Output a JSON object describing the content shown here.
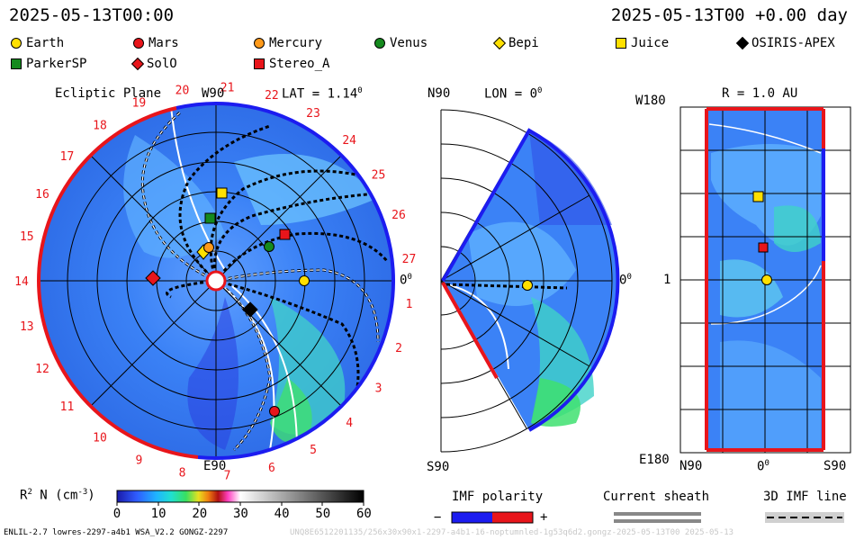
{
  "header": {
    "left_time": "2025-05-13T00:00",
    "right_time": "2025-05-13T00 +0.00 day"
  },
  "legend": [
    {
      "name": "Earth",
      "shape": "circle",
      "color": "#ffe000"
    },
    {
      "name": "Mars",
      "shape": "circle",
      "color": "#e8151b"
    },
    {
      "name": "Mercury",
      "shape": "circle",
      "color": "#ff9a1a"
    },
    {
      "name": "Venus",
      "shape": "circle",
      "color": "#158a1e"
    },
    {
      "name": "Bepi",
      "shape": "diamond",
      "color": "#ffe000"
    },
    {
      "name": "Juice",
      "shape": "square",
      "color": "#ffe000"
    },
    {
      "name": "OSIRIS-APEX",
      "shape": "diamond",
      "color": "#000000"
    },
    {
      "name": "ParkerSP",
      "shape": "square",
      "color": "#158a1e"
    },
    {
      "name": "SolO",
      "shape": "diamond",
      "color": "#e8151b"
    },
    {
      "name": "Stereo_A",
      "shape": "square",
      "color": "#e8151b"
    }
  ],
  "ecliptic": {
    "title": "Ecliptic Plane",
    "lat_label": "LAT = 1.14",
    "lat_sup": "0",
    "w90": "W90",
    "e90": "E90",
    "zero_label": "0",
    "zero_sup": "0",
    "sectors": [
      "19",
      "20",
      "21",
      "22",
      "23",
      "24",
      "25",
      "26",
      "27",
      "1",
      "2",
      "3",
      "4",
      "5",
      "6",
      "7",
      "8",
      "9",
      "10",
      "11",
      "12",
      "13",
      "14",
      "15",
      "16",
      "17",
      "18"
    ]
  },
  "meridional": {
    "n90": "N90",
    "s90": "S90",
    "lon_label": "LON = 0",
    "lon_sup": "0",
    "zero_label": "0",
    "zero_sup": "0"
  },
  "radial": {
    "title": "R = 1.0 AU",
    "w180": "W180",
    "e180": "E180",
    "one": "1",
    "n90": "N90",
    "zero": "0",
    "zero_sup": "0",
    "s90": "S90"
  },
  "colorbar": {
    "label_main": "R",
    "label_sup": "2",
    "label_rest": " N (cm",
    "label_sup2": "-3",
    "label_end": ")",
    "ticks": [
      "0",
      "10",
      "20",
      "30",
      "40",
      "50",
      "60"
    ]
  },
  "bottom_legends": {
    "imf_polarity": "IMF polarity",
    "minus": "−",
    "plus": "+",
    "current_sheath": "Current sheath",
    "imf_line": "3D IMF line"
  },
  "footer": {
    "left": "ENLIL-2.7 lowres-2297-a4b1 WSA_V2.2 GONGZ-2297",
    "right": "UNQ8E6512201135/256x30x90x1-2297-a4b1-16-noptumnled-1g53q6d2.gongz-2025-05-13T00   2025-05-13"
  },
  "colors": {
    "accent_red": "#e8151b",
    "accent_blue": "#1c1cf0"
  }
}
